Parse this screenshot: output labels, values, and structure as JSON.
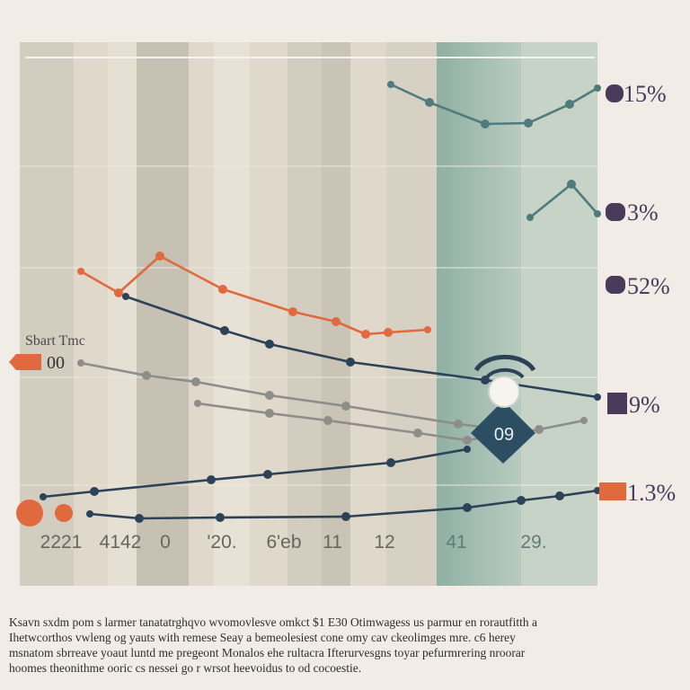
{
  "chart_data": {
    "type": "line",
    "title": "",
    "xlabel": "",
    "ylabel": "",
    "x_tick_labels": [
      "2221",
      "4142",
      "0",
      "'20.",
      "6'eb",
      "11",
      "12",
      "41",
      "29."
    ],
    "right_labels": [
      "15%",
      "3%",
      "52%",
      "9%",
      "1.3%"
    ],
    "left_labels": [
      {
        "text": "Sbart Tmc"
      },
      {
        "text": "00"
      }
    ],
    "marker_label": "09",
    "grid": true,
    "bands": true,
    "series": [
      {
        "color": "#4f7b7c",
        "points": [
          [
            435,
            94
          ],
          [
            478,
            114
          ],
          [
            540,
            138
          ],
          [
            588,
            137
          ],
          [
            634,
            116
          ],
          [
            665,
            98
          ]
        ]
      },
      {
        "color": "#4f7b7c",
        "points": [
          [
            590,
            242
          ],
          [
            636,
            205
          ],
          [
            665,
            238
          ]
        ]
      },
      {
        "color": "#e0693e",
        "points": [
          [
            90,
            302
          ],
          [
            132,
            326
          ],
          [
            178,
            285
          ],
          [
            248,
            322
          ],
          [
            326,
            347
          ],
          [
            374,
            358
          ],
          [
            407,
            372
          ],
          [
            432,
            370
          ],
          [
            476,
            367
          ]
        ]
      },
      {
        "color": "#2b4257",
        "points": [
          [
            140,
            330
          ],
          [
            250,
            368
          ],
          [
            300,
            383
          ],
          [
            390,
            403
          ],
          [
            540,
            423
          ],
          [
            665,
            442
          ]
        ]
      },
      {
        "color": "#8d8d8a",
        "points": [
          [
            90,
            404
          ],
          [
            163,
            418
          ],
          [
            218,
            425
          ],
          [
            300,
            440
          ],
          [
            385,
            452
          ],
          [
            510,
            472
          ],
          [
            560,
            478
          ]
        ]
      },
      {
        "color": "#8d8d8a",
        "points": [
          [
            220,
            449
          ],
          [
            300,
            460
          ],
          [
            365,
            468
          ],
          [
            465,
            482
          ],
          [
            520,
            490
          ],
          [
            600,
            478
          ],
          [
            650,
            468
          ]
        ]
      },
      {
        "color": "#2b4257",
        "points": [
          [
            48,
            553
          ],
          [
            105,
            547
          ],
          [
            235,
            534
          ],
          [
            298,
            528
          ],
          [
            435,
            515
          ],
          [
            520,
            500
          ]
        ]
      },
      {
        "color": "#2b4257",
        "points": [
          [
            100,
            572
          ],
          [
            155,
            577
          ],
          [
            245,
            576
          ],
          [
            385,
            575
          ],
          [
            520,
            565
          ],
          [
            580,
            557
          ],
          [
            623,
            552
          ],
          [
            665,
            546
          ]
        ]
      }
    ]
  },
  "caption": [
    "Ksavn sxdm pom s larmer tanatatrghqvo wvomovlesve omkct $1 E30 Otimwagess us parmur en rorautfitth a",
    "Ihetwcorthos vwleng og yauts with remese Seay a bemeolesiest cone omy cav ckeolimges mre. c6 herey",
    "msnatom sbrreave yoaut luntd me pregeont Monalos ehe rultacra Ifterurvesgns toyar pefurmrering nroorar",
    "hoomes theonithme ooric cs nessei go r wrsot heevoidus to od cocoestie."
  ],
  "colors": {
    "orange": "#e0693e",
    "navy": "#2b4257",
    "teal": "#4f7b7c",
    "grey": "#8d8d8a",
    "purple": "#4a3a5c",
    "right_band": "#98b5a9"
  }
}
